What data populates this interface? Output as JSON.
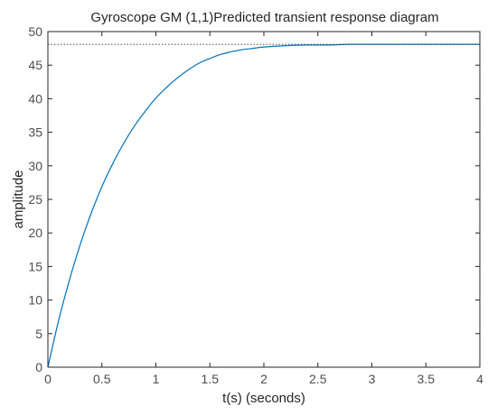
{
  "chart_data": {
    "type": "line",
    "title": "Gyroscope GM (1,1)Predicted transient response diagram",
    "xlabel": "t(s) (seconds)",
    "ylabel": "amplitude",
    "xlim": [
      0,
      4
    ],
    "ylim": [
      0,
      50
    ],
    "xticks": [
      "0",
      "0.5",
      "1",
      "1.5",
      "2",
      "2.5",
      "3",
      "3.5",
      "4"
    ],
    "yticks": [
      "0",
      "5",
      "10",
      "15",
      "20",
      "25",
      "30",
      "35",
      "40",
      "45",
      "50"
    ],
    "grid": false,
    "series": [
      {
        "color": "#0072bd",
        "style": "solid",
        "x": [
          0,
          0.1,
          0.2,
          0.3,
          0.4,
          0.5,
          0.6,
          0.7,
          0.8,
          0.9,
          1.0,
          1.1,
          1.2,
          1.3,
          1.4,
          1.5,
          1.6,
          1.7,
          1.8,
          1.9,
          2.0,
          2.2,
          2.4,
          2.6,
          2.8,
          3.0,
          3.5,
          4.0
        ],
        "y": [
          0,
          7.0,
          13.0,
          18.3,
          22.9,
          26.9,
          30.3,
          33.3,
          35.9,
          38.1,
          40.1,
          41.7,
          43.1,
          44.3,
          45.3,
          46.0,
          46.6,
          47.0,
          47.3,
          47.5,
          47.7,
          47.9,
          48.0,
          48.0,
          48.1,
          48.1,
          48.1,
          48.1
        ]
      },
      {
        "color": "#333333",
        "style": "dotted",
        "x": [
          0,
          4
        ],
        "y": [
          48.1,
          48.1
        ]
      }
    ]
  }
}
